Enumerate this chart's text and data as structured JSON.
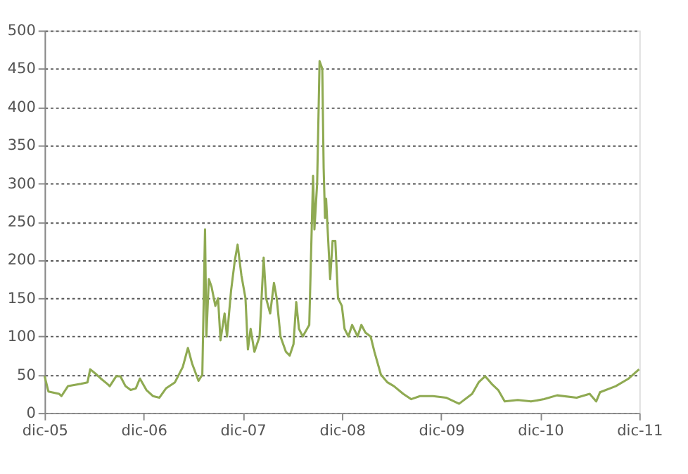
{
  "chart_data": {
    "type": "line",
    "x": [
      "2005-12-01",
      "2005-12-15",
      "2006-01-23",
      "2006-02-01",
      "2006-02-25",
      "2006-04-14",
      "2006-05-08",
      "2006-05-18",
      "2006-06-11",
      "2006-06-26",
      "2006-07-20",
      "2006-07-29",
      "2006-08-22",
      "2006-09-06",
      "2006-09-25",
      "2006-10-14",
      "2006-11-02",
      "2006-11-17",
      "2006-12-11",
      "2007-01-04",
      "2007-01-28",
      "2007-02-21",
      "2007-03-26",
      "2007-04-24",
      "2007-05-13",
      "2007-05-28",
      "2007-06-21",
      "2007-07-05",
      "2007-07-15",
      "2007-07-20",
      "2007-07-29",
      "2007-08-08",
      "2007-08-22",
      "2007-09-01",
      "2007-09-10",
      "2007-09-25",
      "2007-10-04",
      "2007-10-19",
      "2007-11-02",
      "2007-11-12",
      "2007-11-26",
      "2007-12-11",
      "2007-12-20",
      "2007-12-30",
      "2008-01-13",
      "2008-02-01",
      "2008-02-16",
      "2008-02-25",
      "2008-03-11",
      "2008-03-25",
      "2008-04-04",
      "2008-04-18",
      "2008-05-08",
      "2008-05-22",
      "2008-06-05",
      "2008-06-15",
      "2008-06-25",
      "2008-07-09",
      "2008-08-02",
      "2008-08-16",
      "2008-08-21",
      "2008-08-31",
      "2008-09-09",
      "2008-09-19",
      "2008-09-24",
      "2008-09-29",
      "2008-10-03",
      "2008-10-13",
      "2008-10-18",
      "2008-10-27",
      "2008-11-06",
      "2008-11-16",
      "2008-11-30",
      "2008-12-10",
      "2008-12-24",
      "2009-01-07",
      "2009-01-27",
      "2009-02-10",
      "2009-02-25",
      "2009-03-16",
      "2009-03-30",
      "2009-04-23",
      "2009-05-17",
      "2009-06-10",
      "2009-07-14",
      "2009-08-12",
      "2009-09-14",
      "2009-11-01",
      "2009-12-19",
      "2010-02-05",
      "2010-03-25",
      "2010-04-18",
      "2010-05-12",
      "2010-06-05",
      "2010-06-29",
      "2010-07-23",
      "2010-09-09",
      "2010-10-28",
      "2010-12-15",
      "2011-02-01",
      "2011-04-14",
      "2011-06-01",
      "2011-06-25",
      "2011-07-09",
      "2011-09-05",
      "2011-10-23",
      "2011-11-30"
    ],
    "series": [
      {
        "color": "#8faa52",
        "values": [
          48,
          28,
          25,
          22,
          35,
          38,
          40,
          57,
          50,
          45,
          38,
          35,
          48,
          48,
          35,
          30,
          32,
          45,
          30,
          22,
          20,
          32,
          40,
          60,
          85,
          65,
          42,
          50,
          240,
          100,
          175,
          165,
          140,
          150,
          95,
          130,
          100,
          160,
          200,
          220,
          180,
          150,
          83,
          110,
          80,
          100,
          203,
          150,
          130,
          170,
          150,
          100,
          80,
          75,
          90,
          145,
          110,
          100,
          115,
          310,
          240,
          300,
          460,
          450,
          320,
          255,
          280,
          210,
          175,
          225,
          225,
          150,
          140,
          110,
          100,
          115,
          100,
          115,
          105,
          100,
          80,
          50,
          40,
          35,
          25,
          18,
          22,
          22,
          20,
          12,
          25,
          40,
          48,
          38,
          30,
          15,
          17,
          15,
          18,
          23,
          20,
          25,
          15,
          27,
          35,
          45,
          57
        ]
      }
    ],
    "xlim": [
      "2005-12-01",
      "2011-12-01"
    ],
    "xticks": [
      {
        "value": "2005-12-01",
        "label": "dic-05"
      },
      {
        "value": "2006-12-01",
        "label": "dic-06"
      },
      {
        "value": "2007-12-01",
        "label": "dic-07"
      },
      {
        "value": "2008-12-01",
        "label": "dic-08"
      },
      {
        "value": "2009-12-01",
        "label": "dic-09"
      },
      {
        "value": "2010-12-01",
        "label": "dic-10"
      },
      {
        "value": "2011-12-01",
        "label": "dic-11"
      }
    ],
    "ylim": [
      0,
      500
    ],
    "yticks": [
      0,
      50,
      100,
      150,
      200,
      250,
      300,
      350,
      400,
      450,
      500
    ],
    "grid": "y",
    "marker": "none",
    "line_style": "solid"
  }
}
